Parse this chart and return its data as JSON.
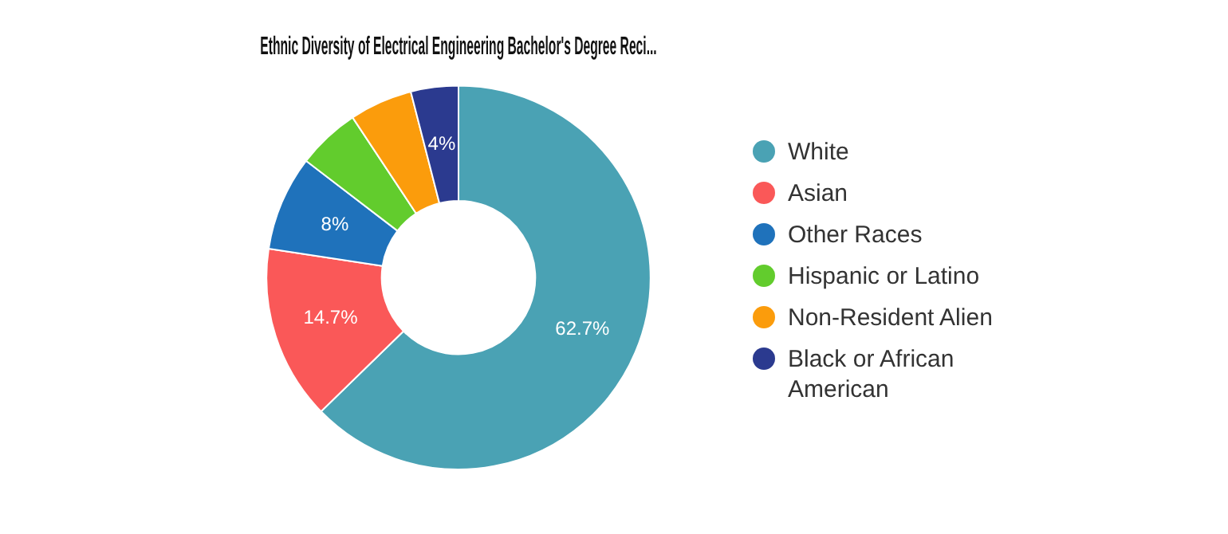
{
  "chart_data": {
    "type": "donut",
    "title": "Ethnic Diversity of Electrical Engineering Bachelor's Degree Reci...",
    "categories": [
      "White",
      "Asian",
      "Other Races",
      "Hispanic or Latino",
      "Non-Resident Alien",
      "Black or African American"
    ],
    "values": [
      62.7,
      14.7,
      8,
      5.3,
      5.3,
      4
    ],
    "colors": [
      "#4aa2b4",
      "#fa5858",
      "#1f72bb",
      "#62cc2d",
      "#fb9c0c",
      "#2b3a8f"
    ],
    "value_labels": [
      "62.7%",
      "14.7%",
      "8%",
      null,
      null,
      "4%"
    ],
    "legend": "right"
  }
}
